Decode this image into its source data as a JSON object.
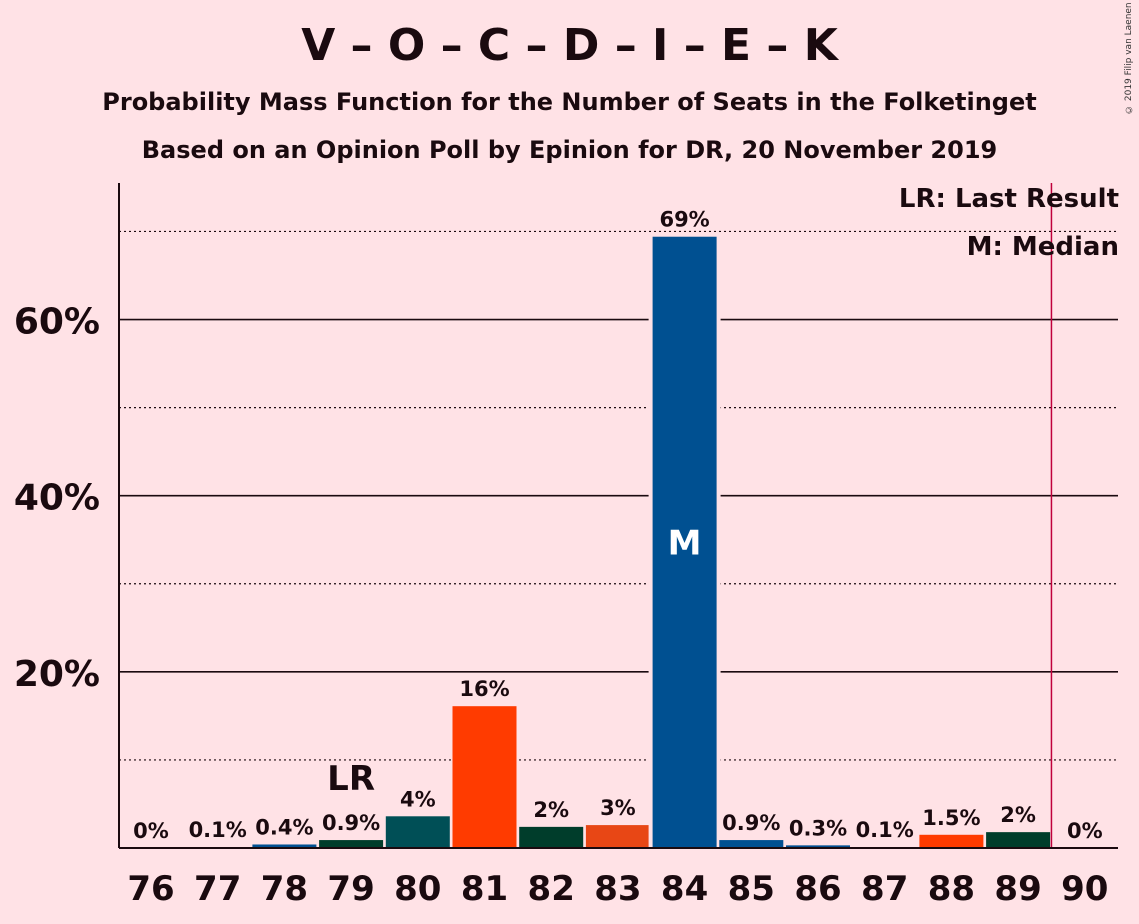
{
  "title": "V – O – C – D – I – E – K",
  "subtitle_1": "Probability Mass Function for the Number of Seats in the Folketinget",
  "subtitle_2": "Based on an Opinion Poll by Epinion for DR, 20 November 2019",
  "copyright": "© 2019 Filip van Laenen",
  "legend": {
    "last_result": "LR: Last Result",
    "median": "M: Median"
  },
  "colors": {
    "background": "#ffe2e6",
    "blue": "#005091",
    "dark_green": "#003d2b",
    "teal": "#004f56",
    "orange_red": "#ff3b00",
    "orange": "#e84715",
    "last_result_line": "#c0003b"
  },
  "chart_data": {
    "type": "bar",
    "categories": [
      "76",
      "77",
      "78",
      "79",
      "80",
      "81",
      "82",
      "83",
      "84",
      "85",
      "86",
      "87",
      "88",
      "89",
      "90"
    ],
    "values": [
      0,
      0.1,
      0.4,
      0.9,
      3.6,
      16.1,
      2.4,
      2.6,
      69.4,
      0.9,
      0.3,
      0.1,
      1.5,
      1.8,
      0
    ],
    "value_labels": [
      "0%",
      "0.1%",
      "0.4%",
      "0.9%",
      "4%",
      "16%",
      "2%",
      "3%",
      "69%",
      "0.9%",
      "0.3%",
      "0.1%",
      "1.5%",
      "2%",
      "0%"
    ],
    "bar_colors": [
      "#005091",
      "#005091",
      "#005091",
      "#003d2b",
      "#004f56",
      "#ff3b00",
      "#003d2b",
      "#e84715",
      "#005091",
      "#005091",
      "#005091",
      "#005091",
      "#ff3b00",
      "#003d2b",
      "#005091"
    ],
    "ytick_values": [
      20,
      40,
      60
    ],
    "ytick_labels": [
      "20%",
      "40%",
      "60%"
    ],
    "minor_grid": [
      10,
      30,
      50,
      70
    ],
    "ylim": [
      0,
      75.5
    ],
    "median_seat": "84",
    "median_marker": "M",
    "last_result_seat": "79",
    "last_result_marker": "LR",
    "majority_line_after": "89",
    "grid": true
  }
}
